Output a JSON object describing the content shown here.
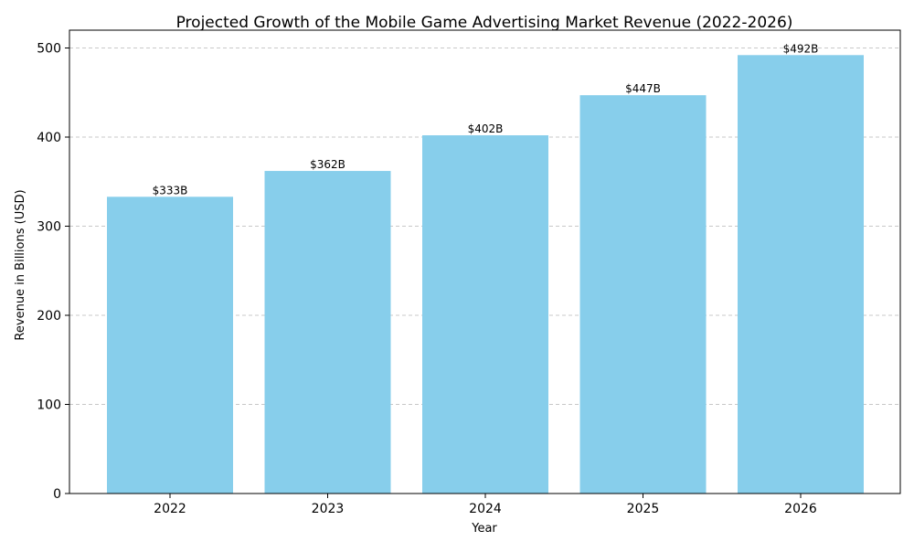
{
  "chart_data": {
    "type": "bar",
    "title": "Projected Growth of the Mobile Game Advertising Market Revenue (2022-2026)",
    "xlabel": "Year",
    "ylabel": "Revenue in Billions (USD)",
    "categories": [
      "2022",
      "2023",
      "2024",
      "2025",
      "2026"
    ],
    "values": [
      333,
      362,
      402,
      447,
      492
    ],
    "data_labels": [
      "$333B",
      "$362B",
      "$402B",
      "$447B",
      "$492B"
    ],
    "ylim": [
      0,
      520
    ],
    "yticks": [
      0,
      100,
      200,
      300,
      400,
      500
    ],
    "grid": true,
    "bar_color": "#87CEEB"
  }
}
